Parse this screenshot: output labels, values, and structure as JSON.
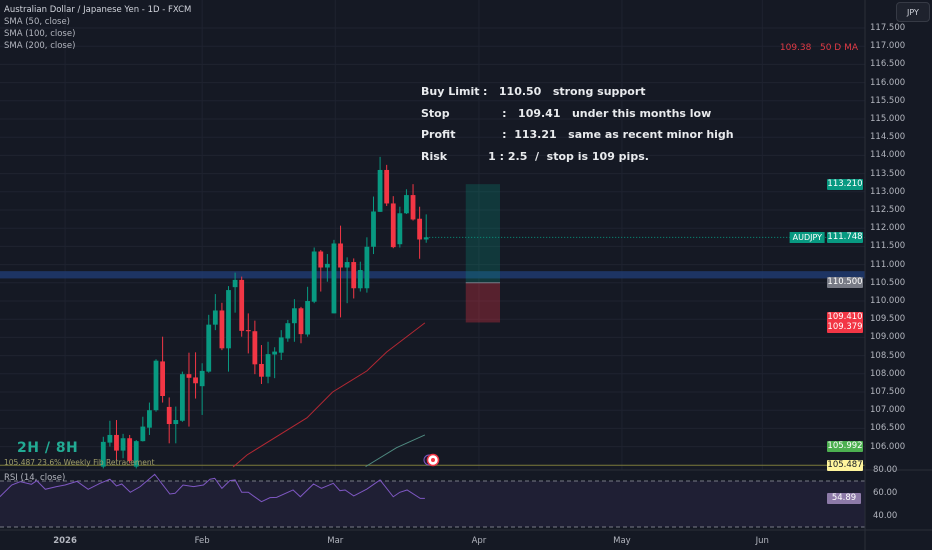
{
  "header": {
    "title": "Australian Dollar / Japanese Yen - 1D - FXCM",
    "indicators": [
      "SMA (50, close)",
      "SMA (100, close)",
      "SMA (200, close)"
    ],
    "currency_button": "JPY"
  },
  "note": {
    "rows": [
      {
        "k": "Buy Limit",
        "v": ":   110.50   strong support"
      },
      {
        "k": "Stop",
        "v": "     :   109.41   under this months low"
      },
      {
        "k": "Profit",
        "v": "     :  113.21   same as recent minor high"
      },
      {
        "k": "Risk",
        "v": "     1 : 2.5  /  stop is 109 pips."
      }
    ]
  },
  "ma_label": "109.38   50 D MA",
  "session_label": "2H / 8H",
  "fib_label": "105.487  23.6% Weekly Fib Retracement",
  "rsi_title": "RSI (14, close)",
  "colors": {
    "up": "#089981",
    "down": "#f23645",
    "sma50": "#b22833",
    "fib": "#7c7a3a",
    "rsi": "#7e57c2",
    "zone": "#1e3a6e"
  },
  "price_axis": {
    "ticks": [
      "117.500",
      "117.000",
      "116.500",
      "116.000",
      "115.500",
      "115.000",
      "114.500",
      "114.000",
      "113.500",
      "113.000",
      "112.500",
      "112.000",
      "111.500",
      "111.000",
      "110.500",
      "110.000",
      "109.500",
      "109.000",
      "108.500",
      "108.000",
      "107.500",
      "107.000",
      "106.500",
      "106.000"
    ],
    "labels": [
      {
        "text": "113.210",
        "price": 113.21,
        "bg": "#089981",
        "fg": "#ffffff"
      },
      {
        "text": "111.748",
        "price": 111.748,
        "bg": "#089981",
        "fg": "#ffffff"
      },
      {
        "text": "110.500",
        "price": 110.5,
        "bg": "#787b86",
        "fg": "#ffffff"
      },
      {
        "text": "109.410",
        "price": 109.56,
        "bg": "#f23645",
        "fg": "#ffffff"
      },
      {
        "text": "109.379",
        "price": 109.26,
        "bg": "#f23645",
        "fg": "#ffffff"
      },
      {
        "text": "105.992",
        "price": 105.992,
        "bg": "#4caf50",
        "fg": "#ffffff"
      },
      {
        "text": "105.487",
        "price": 105.487,
        "bg": "#fff59d",
        "fg": "#131722"
      }
    ],
    "symbol_label": "AUDJPY"
  },
  "rsi_axis": {
    "ticks": [
      {
        "text": "80.00",
        "v": 80
      },
      {
        "text": "60.00",
        "v": 60
      },
      {
        "text": "40.00",
        "v": 40
      }
    ],
    "current": "54.89",
    "current_value": 54.89
  },
  "time_axis": [
    {
      "text": "2026",
      "bar": -5.8
    },
    {
      "text": "Feb",
      "bar": 15.0
    },
    {
      "text": "Mar",
      "bar": 35.2
    },
    {
      "text": "Apr",
      "bar": 57.0
    },
    {
      "text": "May",
      "bar": 78.7
    },
    {
      "text": "Jun",
      "bar": 100.0
    }
  ],
  "chart_data": {
    "type": "candlestick",
    "symbol": "AUDJPY",
    "ylim": [
      105.3,
      117.6
    ],
    "ohlc": [
      [
        105.45,
        106.27,
        105.4,
        106.13
      ],
      [
        106.11,
        106.71,
        106.0,
        106.32
      ],
      [
        106.32,
        106.73,
        105.63,
        105.89
      ],
      [
        105.89,
        106.35,
        105.68,
        106.23
      ],
      [
        106.23,
        106.32,
        105.54,
        105.61
      ],
      [
        105.45,
        106.18,
        105.4,
        106.15
      ],
      [
        106.15,
        106.82,
        106.14,
        106.55
      ],
      [
        106.52,
        107.21,
        106.32,
        107.0
      ],
      [
        107.0,
        108.4,
        106.96,
        108.36
      ],
      [
        108.34,
        109.02,
        107.21,
        107.39
      ],
      [
        107.09,
        107.35,
        106.09,
        106.62
      ],
      [
        106.62,
        107.1,
        106.09,
        106.73
      ],
      [
        106.71,
        108.06,
        106.68,
        107.99
      ],
      [
        107.99,
        108.58,
        106.55,
        107.89
      ],
      [
        107.9,
        108.59,
        107.32,
        107.74
      ],
      [
        107.66,
        108.29,
        106.87,
        108.08
      ],
      [
        108.06,
        109.62,
        108.03,
        109.35
      ],
      [
        109.35,
        110.19,
        109.2,
        109.74
      ],
      [
        109.74,
        109.95,
        108.65,
        108.7
      ],
      [
        108.7,
        110.41,
        108.06,
        110.3
      ],
      [
        110.38,
        110.78,
        109.68,
        110.58
      ],
      [
        110.58,
        110.67,
        109.02,
        109.18
      ],
      [
        109.2,
        109.66,
        108.56,
        109.17
      ],
      [
        109.17,
        109.46,
        107.99,
        108.26
      ],
      [
        108.27,
        108.79,
        107.72,
        107.92
      ],
      [
        107.92,
        108.88,
        107.74,
        108.54
      ],
      [
        108.53,
        108.73,
        107.88,
        108.61
      ],
      [
        108.58,
        109.2,
        108.38,
        109.0
      ],
      [
        108.97,
        109.48,
        108.88,
        109.39
      ],
      [
        109.39,
        110.05,
        108.88,
        109.8
      ],
      [
        109.8,
        109.84,
        108.84,
        109.09
      ],
      [
        109.08,
        110.39,
        109.02,
        110.0
      ],
      [
        109.98,
        111.47,
        109.94,
        111.36
      ],
      [
        111.36,
        111.4,
        110.26,
        110.92
      ],
      [
        110.92,
        111.29,
        110.53,
        111.02
      ],
      [
        109.66,
        111.68,
        109.66,
        111.58
      ],
      [
        111.58,
        112.07,
        109.55,
        110.92
      ],
      [
        110.92,
        111.2,
        109.94,
        111.07
      ],
      [
        111.07,
        111.17,
        110.07,
        110.35
      ],
      [
        110.35,
        111.08,
        110.26,
        110.85
      ],
      [
        110.35,
        111.75,
        110.23,
        111.49
      ],
      [
        111.49,
        112.87,
        111.29,
        112.46
      ],
      [
        112.45,
        113.96,
        112.45,
        113.6
      ],
      [
        113.6,
        113.74,
        112.61,
        112.68
      ],
      [
        112.68,
        112.88,
        111.45,
        111.48
      ],
      [
        111.56,
        112.59,
        111.47,
        112.41
      ],
      [
        112.41,
        113.07,
        112.39,
        112.91
      ],
      [
        112.91,
        113.21,
        112.21,
        112.24
      ],
      [
        112.26,
        112.59,
        111.16,
        111.69
      ],
      [
        111.69,
        112.38,
        111.6,
        111.75
      ]
    ],
    "sma50": [
      [
        19.7,
        105.44
      ],
      [
        21.8,
        105.77
      ],
      [
        30.9,
        106.79
      ],
      [
        34.8,
        107.5
      ],
      [
        40.0,
        108.08
      ],
      [
        43.0,
        108.6
      ],
      [
        48.8,
        109.4
      ]
    ],
    "sma100": [
      [
        39.8,
        105.45
      ],
      [
        44.5,
        105.97
      ],
      [
        48.8,
        106.32
      ]
    ],
    "horizontal_zone": [
      110.62,
      110.82
    ],
    "fib_level": 105.487,
    "last_price": 111.748,
    "position": {
      "entry": 110.5,
      "stop": 109.41,
      "target": 113.21,
      "bar_start": 55,
      "bar_end": 60.2
    },
    "rsi": [
      [
        -15.7,
        56.3
      ],
      [
        -13.9,
        66.5
      ],
      [
        -12.6,
        69.4
      ],
      [
        -10.9,
        67.1
      ],
      [
        -10.1,
        70.3
      ],
      [
        -8.8,
        62.8
      ],
      [
        -7.1,
        65.1
      ],
      [
        -5.8,
        66.5
      ],
      [
        -4.0,
        69.7
      ],
      [
        -2.3,
        62.8
      ],
      [
        -0.5,
        68.0
      ],
      [
        1.0,
        71.5
      ],
      [
        2.0,
        65.7
      ],
      [
        2.8,
        67.4
      ],
      [
        4.1,
        60.2
      ],
      [
        5.6,
        65.1
      ],
      [
        7.8,
        75.8
      ],
      [
        10.1,
        58.7
      ],
      [
        10.9,
        59.3
      ],
      [
        12.1,
        66.5
      ],
      [
        13.7,
        65.1
      ],
      [
        15.2,
        66.5
      ],
      [
        16.2,
        71.5
      ],
      [
        16.9,
        72.3
      ],
      [
        18.0,
        63.6
      ],
      [
        19.2,
        70.3
      ],
      [
        20.0,
        70.9
      ],
      [
        21.0,
        60.2
      ],
      [
        22.0,
        60.2
      ],
      [
        24.0,
        52.0
      ],
      [
        25.3,
        55.5
      ],
      [
        26.3,
        55.8
      ],
      [
        28.8,
        62.2
      ],
      [
        29.9,
        56.3
      ],
      [
        31.9,
        67.4
      ],
      [
        33.1,
        63.6
      ],
      [
        34.9,
        68.0
      ],
      [
        35.9,
        61.6
      ],
      [
        36.7,
        62.2
      ],
      [
        38.0,
        57.0
      ],
      [
        40.0,
        63.0
      ],
      [
        42.0,
        70.9
      ],
      [
        44.0,
        56.3
      ],
      [
        45.0,
        60.2
      ],
      [
        46.1,
        62.2
      ],
      [
        48.1,
        54.9
      ],
      [
        48.8,
        54.89
      ]
    ],
    "rsi_bands": [
      70,
      30
    ]
  }
}
